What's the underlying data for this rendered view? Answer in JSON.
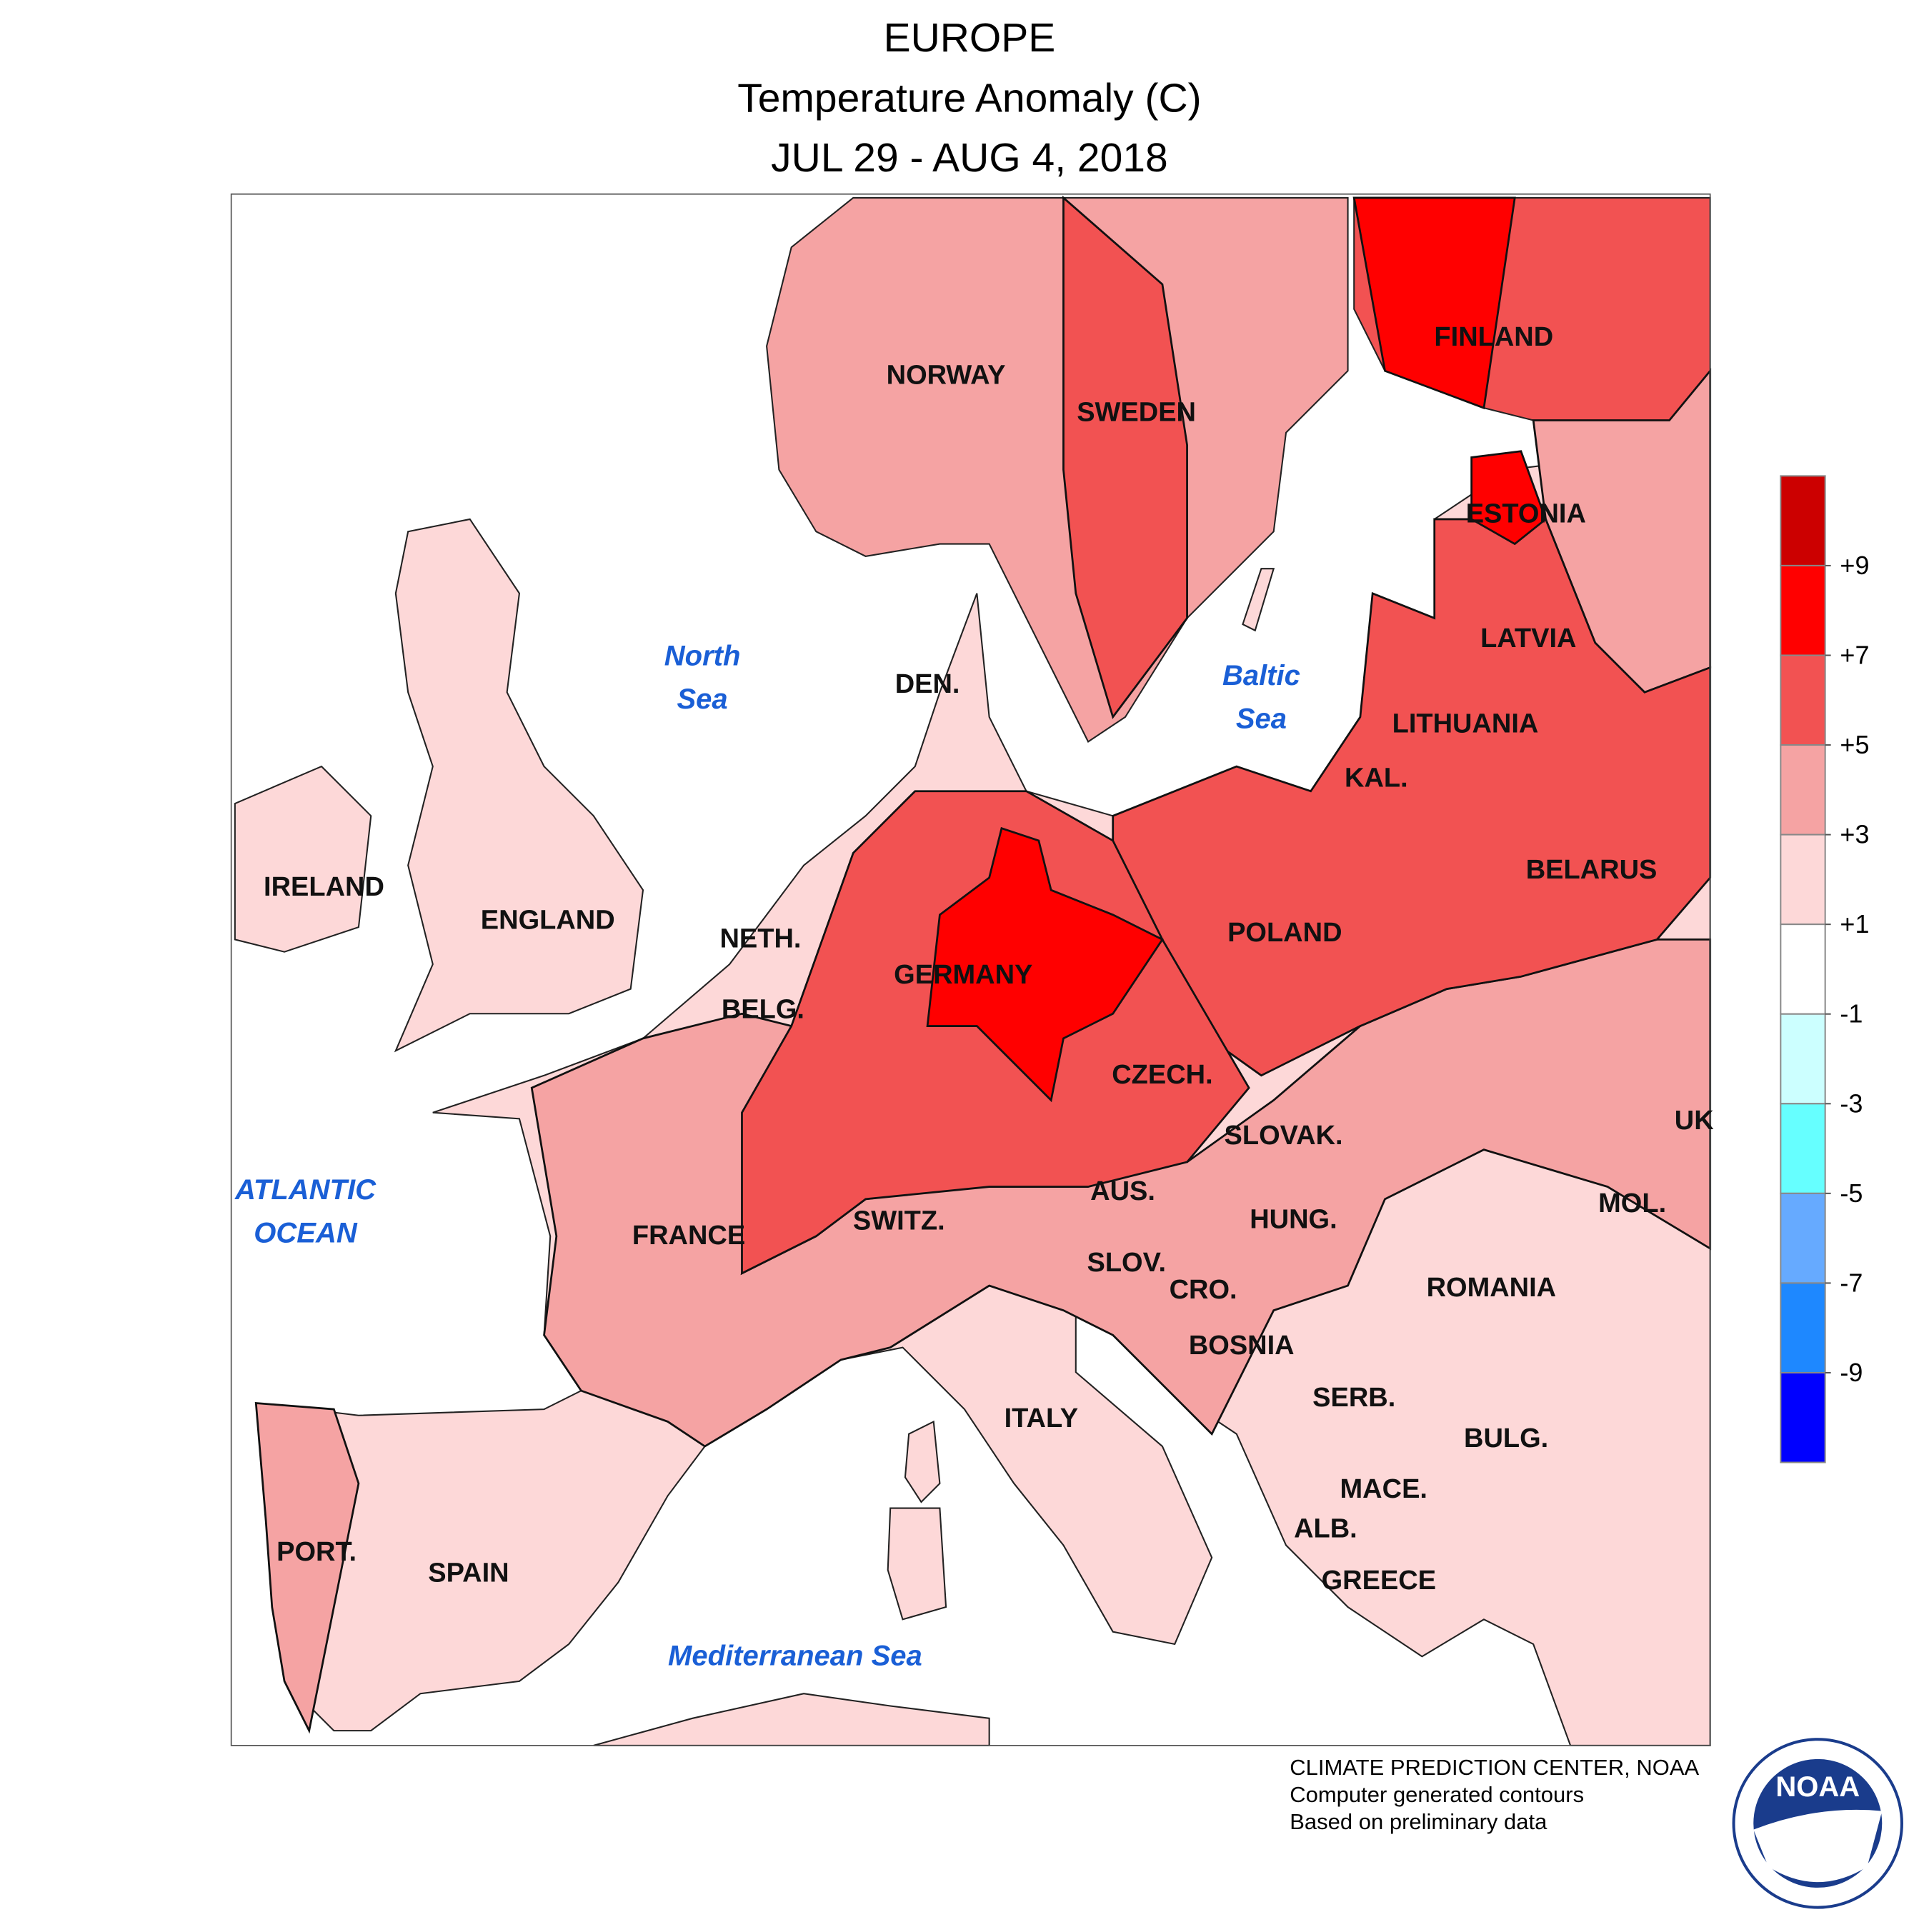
{
  "title": [
    "EUROPE",
    "Temperature Anomaly (C)",
    "JUL 29 - AUG 4, 2018"
  ],
  "countries": [
    "NORWAY",
    "SWEDEN",
    "FINLAND",
    "ESTONIA",
    "LATVIA",
    "LITHUANIA",
    "KAL.",
    "BELARUS",
    "POLAND",
    "GERMANY",
    "CZECH.",
    "SLOVAK.",
    "AUS.",
    "HUNG.",
    "ROMANIA",
    "MOL.",
    "UK",
    "SWITZ.",
    "FRANCE",
    "SLOV.",
    "CRO.",
    "BOSNIA",
    "SERB.",
    "BULG.",
    "MACE.",
    "ALB.",
    "GREECE",
    "ITALY",
    "SPAIN",
    "PORT.",
    "IRELAND",
    "ENGLAND",
    "NETH.",
    "BELG.",
    "DEN."
  ],
  "seas": [
    [
      "North",
      "Sea"
    ],
    [
      "Baltic",
      "Sea"
    ],
    [
      "ATLANTIC",
      "OCEAN"
    ],
    [
      "Mediterranean Sea"
    ]
  ],
  "legend": {
    "ticks": [
      {
        "value": 9,
        "label": "+9"
      },
      {
        "value": 7,
        "label": "+7"
      },
      {
        "value": 5,
        "label": "+5"
      },
      {
        "value": 3,
        "label": "+3"
      },
      {
        "value": 1,
        "label": "+1"
      },
      -1,
      -3,
      -5,
      -7,
      -9
    ],
    "colors": [
      "#cc0000",
      "#ff0000",
      "#f25252",
      "#f5a3a3",
      "#fdd8d8",
      "#ffffff",
      "#ccffff",
      "#66ffff",
      "#66aaff",
      "#1e88ff",
      "#0000ff"
    ]
  },
  "credits": [
    "CLIMATE PREDICTION CENTER, NOAA",
    "Computer generated contours",
    "Based on preliminary data"
  ],
  "logo": "NOAA"
}
